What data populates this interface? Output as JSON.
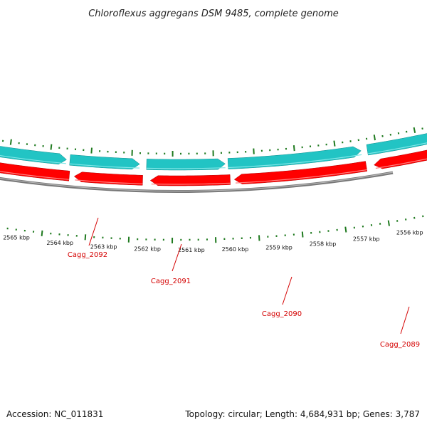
{
  "title": "Chloroflexus aggregans DSM 9485, complete genome",
  "accession": "Accession: NC_011831",
  "summary": "Topology: circular; Length: 4,684,931 bp; Genes: 3,787",
  "colors": {
    "backbone": "#8c8c8c",
    "forward_gene": "#ff0000",
    "reverse_cds": "#22c4c4",
    "tick": "#1f7a1f",
    "label": "#d40000"
  },
  "kbp_labels": [
    "2565 kbp",
    "2564 kbp",
    "2563 kbp",
    "2562 kbp",
    "2561 kbp",
    "2560 kbp",
    "2559 kbp",
    "2558 kbp",
    "2557 kbp",
    "2556 kbp"
  ],
  "genes": [
    {
      "name": "Cagg_2092"
    },
    {
      "name": "Cagg_2091"
    },
    {
      "name": "Cagg_2090"
    },
    {
      "name": "Cagg_2089"
    }
  ]
}
